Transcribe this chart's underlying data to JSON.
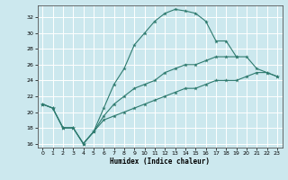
{
  "xlabel": "Humidex (Indice chaleur)",
  "xlim": [
    -0.5,
    23.5
  ],
  "ylim": [
    15.5,
    33.5
  ],
  "yticks": [
    16,
    18,
    20,
    22,
    24,
    26,
    28,
    30,
    32
  ],
  "xticks": [
    0,
    1,
    2,
    3,
    4,
    5,
    6,
    7,
    8,
    9,
    10,
    11,
    12,
    13,
    14,
    15,
    16,
    17,
    18,
    19,
    20,
    21,
    22,
    23
  ],
  "bg_color": "#cce8ee",
  "grid_color": "#ffffff",
  "line_color": "#2d7a6e",
  "lines": [
    {
      "x": [
        0,
        1,
        2,
        3,
        4,
        5,
        6,
        7,
        8,
        9,
        10,
        11,
        12,
        13,
        14,
        15,
        16,
        17,
        18,
        19
      ],
      "y": [
        21,
        20.5,
        18,
        18,
        16,
        17.5,
        20.5,
        23.5,
        25.5,
        28.5,
        30,
        31.5,
        32.5,
        33,
        32.8,
        32.5,
        31.5,
        29,
        29,
        27
      ]
    },
    {
      "x": [
        0,
        1,
        2,
        3,
        4,
        5,
        6,
        7,
        8,
        9,
        10,
        11,
        12,
        13,
        14,
        15,
        16,
        17,
        18,
        19,
        20,
        21,
        22,
        23
      ],
      "y": [
        21,
        20.5,
        18,
        18,
        16,
        17.5,
        19.5,
        21,
        22,
        23,
        23.5,
        24,
        25,
        25.5,
        26,
        26,
        26.5,
        27,
        27,
        27,
        27,
        25.5,
        25,
        24.5
      ]
    },
    {
      "x": [
        0,
        1,
        2,
        3,
        4,
        5,
        6,
        7,
        8,
        9,
        10,
        11,
        12,
        13,
        14,
        15,
        16,
        17,
        18,
        19,
        20,
        21,
        22,
        23
      ],
      "y": [
        21,
        20.5,
        18,
        18,
        16,
        17.5,
        19,
        19.5,
        20,
        20.5,
        21,
        21.5,
        22,
        22.5,
        23,
        23,
        23.5,
        24,
        24,
        24,
        24.5,
        25,
        25,
        24.5
      ]
    }
  ]
}
